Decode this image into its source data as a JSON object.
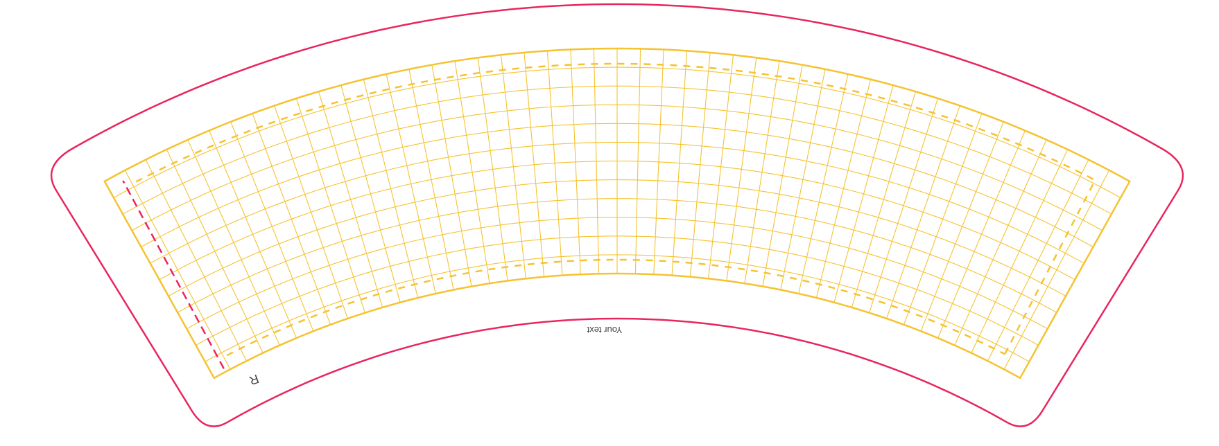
{
  "template": {
    "placeholder_text": "Your text",
    "corner_mark": "R",
    "colors": {
      "cut_line": "#e8265e",
      "bleed_area": "#f5c230",
      "grid_lines": "#f5c230",
      "safe_zone": "#f5c230",
      "seam_line": "#e8265e",
      "text": "#444444",
      "background": "#ffffff"
    }
  }
}
